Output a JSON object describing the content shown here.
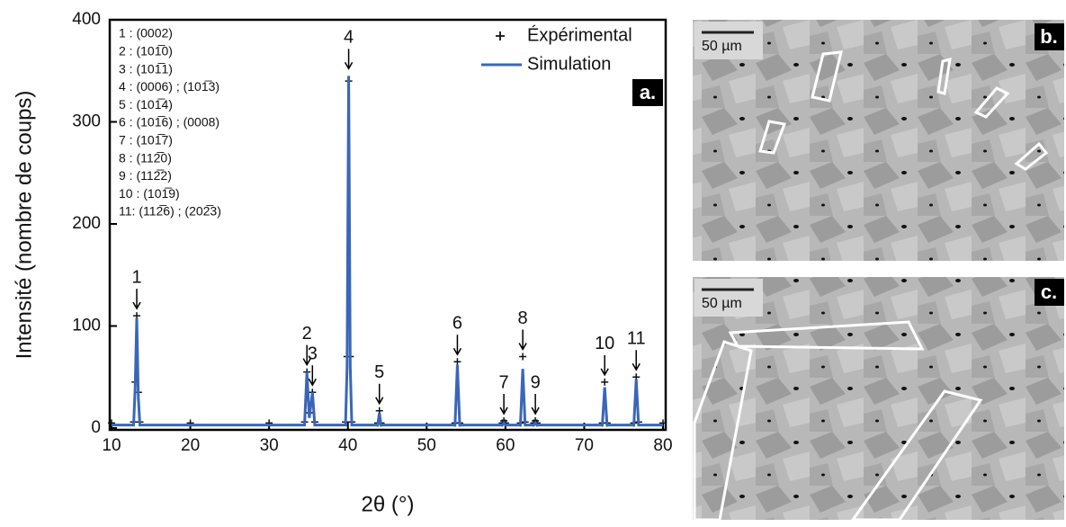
{
  "chart_data": {
    "type": "line",
    "y_label": "Intensité (nombre de coups)",
    "x_label": "2θ (°)",
    "panel_label": "a.",
    "x": [
      10,
      12.8,
      13.0,
      13.2,
      13.4,
      13.6,
      20,
      30,
      34.5,
      34.8,
      35.1,
      35.5,
      35.8,
      39.7,
      39.9,
      40.1,
      40.3,
      40.5,
      43.8,
      44.0,
      44.2,
      53.6,
      53.9,
      54.2,
      59.6,
      59.8,
      60.0,
      61.9,
      62.2,
      62.5,
      63.6,
      63.8,
      64.0,
      72.3,
      72.6,
      72.9,
      76.3,
      76.6,
      76.9,
      80
    ],
    "series": [
      {
        "name": "Éxpérimental",
        "color": "#111111",
        "marker": "+",
        "values": [
          5,
          6,
          45,
          110,
          35,
          6,
          5,
          5,
          6,
          55,
          15,
          35,
          6,
          6,
          70,
          340,
          70,
          6,
          5,
          17,
          5,
          5,
          65,
          5,
          5,
          7,
          5,
          5,
          70,
          6,
          5,
          7,
          5,
          5,
          45,
          5,
          5,
          50,
          6,
          5
        ]
      },
      {
        "name": "Simulation",
        "color": "#3a66b8",
        "marker": "line",
        "values": [
          3,
          3,
          40,
          108,
          30,
          3,
          3,
          3,
          3,
          55,
          10,
          35,
          3,
          3,
          60,
          345,
          60,
          3,
          3,
          15,
          3,
          3,
          62,
          3,
          3,
          5,
          3,
          3,
          58,
          3,
          3,
          5,
          3,
          3,
          40,
          3,
          3,
          48,
          3,
          3
        ]
      }
    ],
    "xlim": [
      10,
      80
    ],
    "xticks": [
      10,
      20,
      30,
      40,
      50,
      60,
      70,
      80
    ],
    "ylim": [
      0,
      400
    ],
    "yticks": [
      0,
      100,
      200,
      300,
      400
    ],
    "legend": "upper right",
    "peak_labels": {
      "labels": [
        "1",
        "2",
        "3",
        "4",
        "5",
        "6",
        "7",
        "8",
        "9",
        "10",
        "11"
      ],
      "x": [
        13.2,
        34.8,
        35.5,
        40.1,
        44.0,
        53.9,
        59.8,
        62.2,
        63.8,
        72.6,
        76.6
      ]
    },
    "index_list": [
      "1 : (0002)",
      "2 : (101̅0)",
      "3 : (101̅1)",
      "4 : (0006) ; (101̅3)",
      "5 : (101̅4)",
      "6 : (101̅6) ; (0008)",
      "7 : (101̅7)",
      "8 : (112̅0)",
      "9 : (112̅2)",
      "10 : (101̅9)",
      "11: (112̅6) ; (202̅3)"
    ]
  },
  "panels": [
    {
      "label": "b.",
      "scale_bar": "50 µm"
    },
    {
      "label": "c.",
      "scale_bar": "50 µm"
    }
  ]
}
